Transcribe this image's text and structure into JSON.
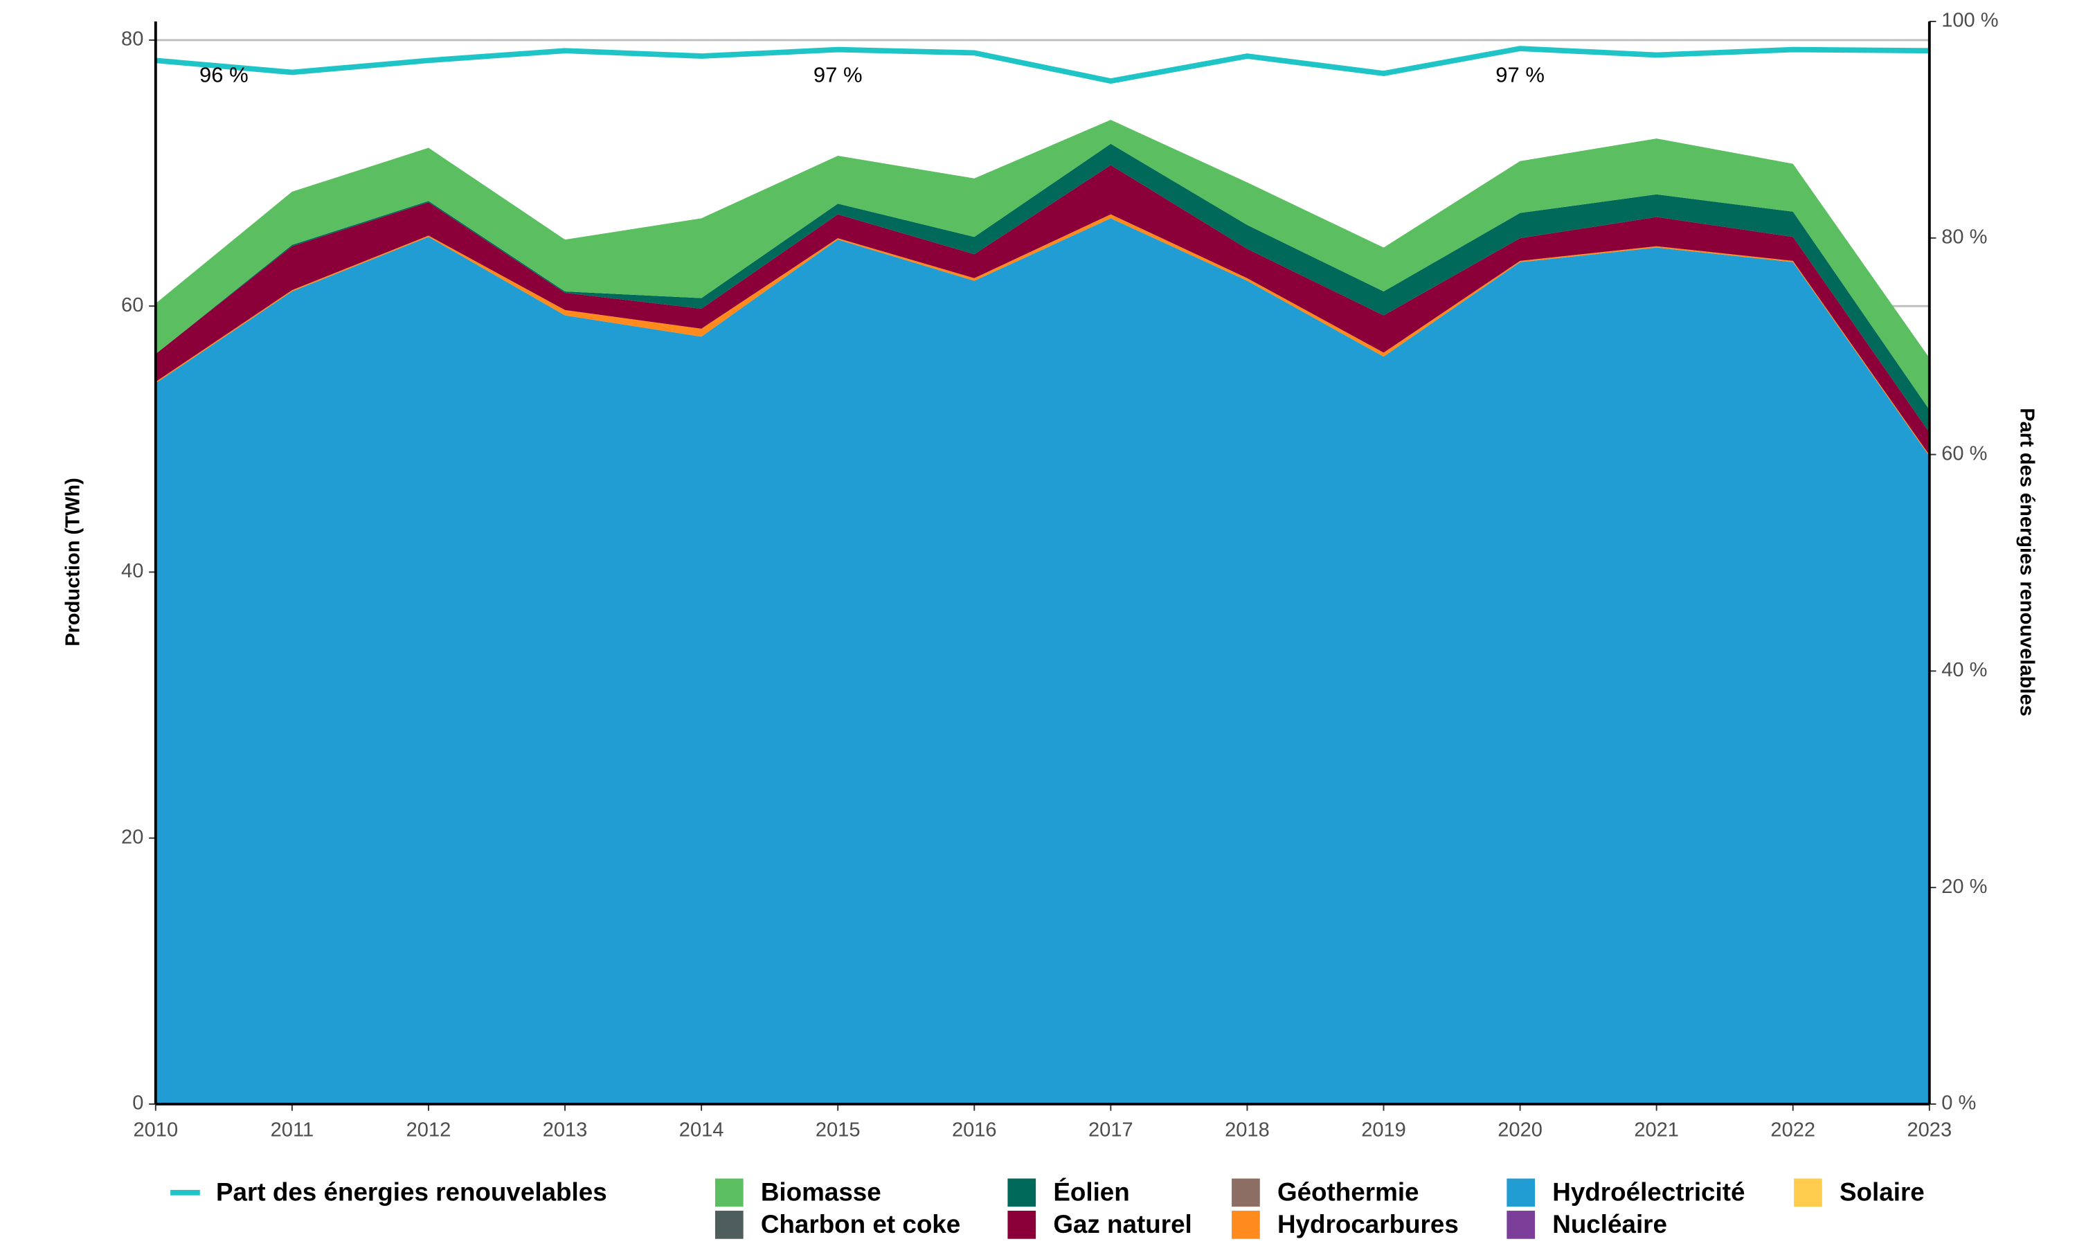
{
  "chart_data": {
    "type": "area",
    "x": [
      2010,
      2011,
      2012,
      2013,
      2014,
      2015,
      2016,
      2017,
      2018,
      2019,
      2020,
      2021,
      2022,
      2023
    ],
    "xlim": [
      2010,
      2023
    ],
    "xticks": [
      2010,
      2011,
      2012,
      2013,
      2014,
      2015,
      2016,
      2017,
      2018,
      2019,
      2020,
      2021,
      2022,
      2023
    ],
    "ylabel": "Production (TWh)",
    "ylim": [
      0,
      81.4
    ],
    "yticks": [
      0,
      20,
      40,
      60,
      80
    ],
    "y2label": "Part des énergies renouvelables",
    "y2lim": [
      0,
      100
    ],
    "y2ticks": [
      {
        "value": 0,
        "label": "0 %"
      },
      {
        "value": 20,
        "label": "20 %"
      },
      {
        "value": 40,
        "label": "40 %"
      },
      {
        "value": 60,
        "label": "60 %"
      },
      {
        "value": 80,
        "label": "80 %"
      },
      {
        "value": 100,
        "label": "100 %"
      }
    ],
    "grid": true,
    "stacked": true,
    "legend": "bottom",
    "series": [
      {
        "name": "Part des énergies renouvelables",
        "type": "line",
        "axis": "y2",
        "color": "#1fc4c7",
        "values": [
          96.4,
          95.3,
          96.4,
          97.3,
          96.8,
          97.4,
          97.1,
          94.5,
          96.8,
          95.2,
          97.5,
          96.9,
          97.4,
          97.3
        ]
      },
      {
        "name": "Biomasse",
        "color": "#5bbf61",
        "values": [
          3.8,
          4.0,
          4.0,
          3.9,
          6.0,
          3.6,
          4.4,
          1.8,
          3.2,
          3.3,
          3.9,
          4.2,
          3.6,
          3.9
        ]
      },
      {
        "name": "Charbon et coke",
        "color": "#4d5e5c",
        "values": [
          0,
          0,
          0,
          0,
          0,
          0,
          0,
          0,
          0,
          0,
          0,
          0,
          0,
          0
        ]
      },
      {
        "name": "Éolien",
        "color": "#00695a",
        "values": [
          0,
          0.1,
          0.1,
          0.1,
          0.8,
          0.8,
          1.3,
          1.6,
          1.8,
          1.8,
          1.9,
          1.7,
          1.9,
          1.7
        ]
      },
      {
        "name": "Gaz naturel",
        "color": "#8b0039",
        "values": [
          2.1,
          3.3,
          2.5,
          1.3,
          1.5,
          1.8,
          1.8,
          3.7,
          2.2,
          2.8,
          1.7,
          2.2,
          1.8,
          1.7
        ]
      },
      {
        "name": "Géothermie",
        "color": "#8c6e64",
        "values": [
          0,
          0,
          0,
          0,
          0,
          0,
          0,
          0,
          0,
          0,
          0,
          0,
          0,
          0
        ]
      },
      {
        "name": "Hydrocarbures",
        "color": "#ff8a1e",
        "values": [
          0.1,
          0.1,
          0.1,
          0.4,
          0.6,
          0.1,
          0.2,
          0.3,
          0.2,
          0.3,
          0.1,
          0.1,
          0.1,
          0.1
        ]
      },
      {
        "name": "Hydroélectricité",
        "color": "#229dd4",
        "values": [
          54.2,
          61.1,
          65.2,
          59.3,
          57.7,
          65.0,
          61.9,
          66.6,
          61.9,
          56.2,
          63.3,
          64.4,
          63.3,
          48.7
        ]
      },
      {
        "name": "Nucléaire",
        "color": "#7b3f99",
        "values": [
          0,
          0,
          0,
          0,
          0,
          0,
          0,
          0,
          0,
          0,
          0,
          0,
          0,
          0
        ]
      },
      {
        "name": "Solaire",
        "color": "#ffcc4d",
        "values": [
          0,
          0,
          0,
          0,
          0,
          0,
          0,
          0,
          0,
          0,
          0,
          0,
          0,
          0
        ]
      }
    ],
    "annotations": [
      {
        "text": "96 %",
        "x": 2010.5
      },
      {
        "text": "97 %",
        "x": 2015
      },
      {
        "text": "97 %",
        "x": 2020
      }
    ]
  }
}
